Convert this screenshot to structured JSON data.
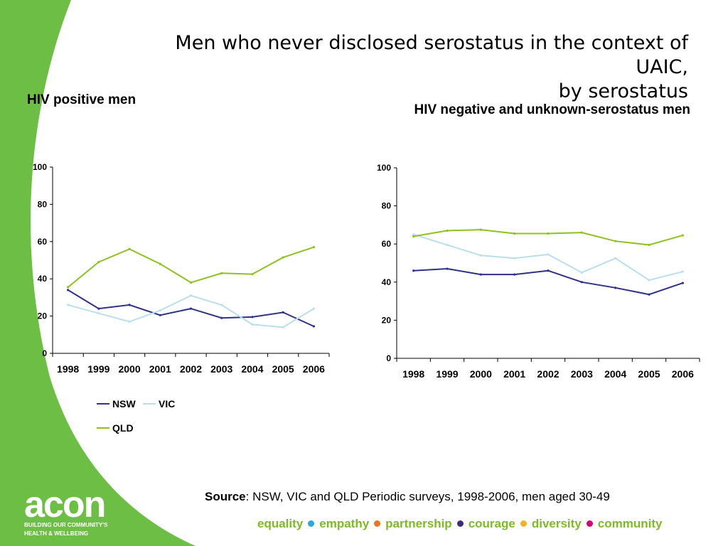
{
  "slide": {
    "title_lines": [
      "Men  who never disclosed serostatus in the context of",
      "UAIC,",
      "by serostatus"
    ],
    "subtitle_left": "HIV positive men",
    "subtitle_right": "HIV negative and unknown-serostatus men",
    "source_label": "Source",
    "source_text": ": NSW, VIC and QLD Periodic surveys, 1998-2006, men aged 30-49"
  },
  "branding": {
    "logo_word": "acon",
    "logo_tag_line1": "BUILDING OUR COMMUNITY'S",
    "logo_tag_line2": "HEALTH & WELLBEING",
    "values": [
      {
        "word": "equality",
        "dot": "#29a9e0"
      },
      {
        "word": "empathy",
        "dot": "#e87722"
      },
      {
        "word": "partnership",
        "dot": "#3b2a80"
      },
      {
        "word": "courage",
        "dot": "#f0b323"
      },
      {
        "word": "diversity",
        "dot": "#d6006e"
      },
      {
        "word": "community",
        "dot": null
      }
    ],
    "brand_green": "#6cbe45",
    "values_text_color": "#7dba2a"
  },
  "chart_data": [
    {
      "type": "line",
      "title": "HIV positive men",
      "categories": [
        "1998",
        "1999",
        "2000",
        "2001",
        "2002",
        "2003",
        "2004",
        "2005",
        "2006"
      ],
      "ylim": [
        0,
        100
      ],
      "yticks": [
        "0",
        "20",
        "40",
        "60",
        "80",
        "100"
      ],
      "grid": false,
      "legend": "bottom",
      "series": [
        {
          "name": "NSW",
          "color": "#2e3184",
          "values": [
            34,
            24,
            26,
            20.5,
            24,
            19,
            19.5,
            22,
            14.5
          ]
        },
        {
          "name": "VIC",
          "color": "#b9e0ea",
          "values": [
            26,
            21.5,
            17,
            23,
            31,
            26,
            15.5,
            14,
            24
          ]
        },
        {
          "name": "QLD",
          "color": "#8dc21f",
          "values": [
            35.5,
            49,
            56,
            48,
            38,
            43,
            42.5,
            51.5,
            57
          ]
        }
      ]
    },
    {
      "type": "line",
      "title": "HIV negative and unknown-serostatus men",
      "categories": [
        "1998",
        "1999",
        "2000",
        "2001",
        "2002",
        "2003",
        "2004",
        "2005",
        "2006"
      ],
      "ylim": [
        0,
        100
      ],
      "yticks": [
        "0",
        "20",
        "40",
        "60",
        "80",
        "100"
      ],
      "grid": false,
      "legend": "none",
      "series": [
        {
          "name": "NSW",
          "color": "#2e3184",
          "values": [
            46,
            47,
            44,
            44,
            46,
            40,
            37,
            33.5,
            39.5
          ]
        },
        {
          "name": "VIC",
          "color": "#b9e0ea",
          "values": [
            65,
            59.5,
            54,
            52.5,
            54.5,
            45,
            52.5,
            41,
            45.5
          ]
        },
        {
          "name": "QLD",
          "color": "#8dc21f",
          "values": [
            64,
            67,
            67.5,
            65.5,
            65.5,
            66,
            61.5,
            59.5,
            64.5
          ]
        }
      ]
    }
  ]
}
